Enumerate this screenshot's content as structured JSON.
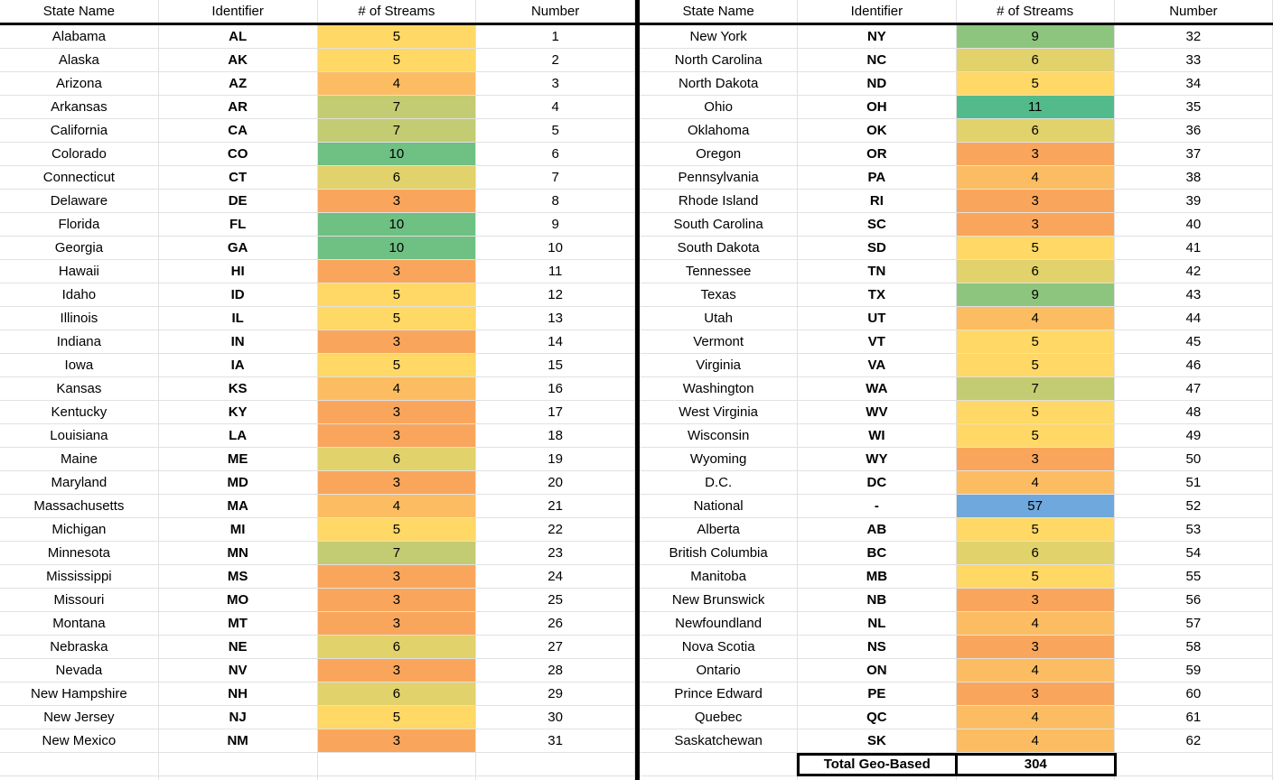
{
  "grid": {
    "headers": [
      "State Name",
      "Identifier",
      "# of Streams",
      "Number"
    ],
    "gridline_color": "#e1e1e1",
    "separator_color": "#000000",
    "header_underline_color": "#000000",
    "total_border_color": "#000000",
    "value_colors": {
      "3": "#f9a65c",
      "4": "#fcbd62",
      "5": "#ffd866",
      "6": "#e1d26c",
      "7": "#c3cc72",
      "9": "#8ec57e",
      "10": "#6ec083",
      "11": "#53bb8b",
      "57": "#6fa8dc"
    },
    "left_table": {
      "filler_rows": 2,
      "rows": [
        {
          "state": "Alabama",
          "abbr": "AL",
          "streams": "5",
          "number": "1"
        },
        {
          "state": "Alaska",
          "abbr": "AK",
          "streams": "5",
          "number": "2"
        },
        {
          "state": "Arizona",
          "abbr": "AZ",
          "streams": "4",
          "number": "3"
        },
        {
          "state": "Arkansas",
          "abbr": "AR",
          "streams": "7",
          "number": "4"
        },
        {
          "state": "California",
          "abbr": "CA",
          "streams": "7",
          "number": "5"
        },
        {
          "state": "Colorado",
          "abbr": "CO",
          "streams": "10",
          "number": "6"
        },
        {
          "state": "Connecticut",
          "abbr": "CT",
          "streams": "6",
          "number": "7"
        },
        {
          "state": "Delaware",
          "abbr": "DE",
          "streams": "3",
          "number": "8"
        },
        {
          "state": "Florida",
          "abbr": "FL",
          "streams": "10",
          "number": "9"
        },
        {
          "state": "Georgia",
          "abbr": "GA",
          "streams": "10",
          "number": "10"
        },
        {
          "state": "Hawaii",
          "abbr": "HI",
          "streams": "3",
          "number": "11"
        },
        {
          "state": "Idaho",
          "abbr": "ID",
          "streams": "5",
          "number": "12"
        },
        {
          "state": "Illinois",
          "abbr": "IL",
          "streams": "5",
          "number": "13"
        },
        {
          "state": "Indiana",
          "abbr": "IN",
          "streams": "3",
          "number": "14"
        },
        {
          "state": "Iowa",
          "abbr": "IA",
          "streams": "5",
          "number": "15"
        },
        {
          "state": "Kansas",
          "abbr": "KS",
          "streams": "4",
          "number": "16"
        },
        {
          "state": "Kentucky",
          "abbr": "KY",
          "streams": "3",
          "number": "17"
        },
        {
          "state": "Louisiana",
          "abbr": "LA",
          "streams": "3",
          "number": "18"
        },
        {
          "state": "Maine",
          "abbr": "ME",
          "streams": "6",
          "number": "19"
        },
        {
          "state": "Maryland",
          "abbr": "MD",
          "streams": "3",
          "number": "20"
        },
        {
          "state": "Massachusetts",
          "abbr": "MA",
          "streams": "4",
          "number": "21"
        },
        {
          "state": "Michigan",
          "abbr": "MI",
          "streams": "5",
          "number": "22"
        },
        {
          "state": "Minnesota",
          "abbr": "MN",
          "streams": "7",
          "number": "23"
        },
        {
          "state": "Mississippi",
          "abbr": "MS",
          "streams": "3",
          "number": "24"
        },
        {
          "state": "Missouri",
          "abbr": "MO",
          "streams": "3",
          "number": "25"
        },
        {
          "state": "Montana",
          "abbr": "MT",
          "streams": "3",
          "number": "26"
        },
        {
          "state": "Nebraska",
          "abbr": "NE",
          "streams": "6",
          "number": "27"
        },
        {
          "state": "Nevada",
          "abbr": "NV",
          "streams": "3",
          "number": "28"
        },
        {
          "state": "New Hampshire",
          "abbr": "NH",
          "streams": "6",
          "number": "29"
        },
        {
          "state": "New Jersey",
          "abbr": "NJ",
          "streams": "5",
          "number": "30"
        },
        {
          "state": "New Mexico",
          "abbr": "NM",
          "streams": "3",
          "number": "31"
        }
      ]
    },
    "right_table": {
      "filler_rows": 1,
      "rows": [
        {
          "state": "New York",
          "abbr": "NY",
          "streams": "9",
          "number": "32"
        },
        {
          "state": "North Carolina",
          "abbr": "NC",
          "streams": "6",
          "number": "33"
        },
        {
          "state": "North Dakota",
          "abbr": "ND",
          "streams": "5",
          "number": "34"
        },
        {
          "state": "Ohio",
          "abbr": "OH",
          "streams": "11",
          "number": "35"
        },
        {
          "state": "Oklahoma",
          "abbr": "OK",
          "streams": "6",
          "number": "36"
        },
        {
          "state": "Oregon",
          "abbr": "OR",
          "streams": "3",
          "number": "37"
        },
        {
          "state": "Pennsylvania",
          "abbr": "PA",
          "streams": "4",
          "number": "38"
        },
        {
          "state": "Rhode Island",
          "abbr": "RI",
          "streams": "3",
          "number": "39"
        },
        {
          "state": "South Carolina",
          "abbr": "SC",
          "streams": "3",
          "number": "40"
        },
        {
          "state": "South Dakota",
          "abbr": "SD",
          "streams": "5",
          "number": "41"
        },
        {
          "state": "Tennessee",
          "abbr": "TN",
          "streams": "6",
          "number": "42"
        },
        {
          "state": "Texas",
          "abbr": "TX",
          "streams": "9",
          "number": "43"
        },
        {
          "state": "Utah",
          "abbr": "UT",
          "streams": "4",
          "number": "44"
        },
        {
          "state": "Vermont",
          "abbr": "VT",
          "streams": "5",
          "number": "45"
        },
        {
          "state": "Virginia",
          "abbr": "VA",
          "streams": "5",
          "number": "46"
        },
        {
          "state": "Washington",
          "abbr": "WA",
          "streams": "7",
          "number": "47"
        },
        {
          "state": "West Virginia",
          "abbr": "WV",
          "streams": "5",
          "number": "48"
        },
        {
          "state": "Wisconsin",
          "abbr": "WI",
          "streams": "5",
          "number": "49"
        },
        {
          "state": "Wyoming",
          "abbr": "WY",
          "streams": "3",
          "number": "50"
        },
        {
          "state": "D.C.",
          "abbr": "DC",
          "streams": "4",
          "number": "51"
        },
        {
          "state": "National",
          "abbr": "-",
          "streams": "57",
          "number": "52"
        },
        {
          "state": "Alberta",
          "abbr": "AB",
          "streams": "5",
          "number": "53"
        },
        {
          "state": "British Columbia",
          "abbr": "BC",
          "streams": "6",
          "number": "54"
        },
        {
          "state": "Manitoba",
          "abbr": "MB",
          "streams": "5",
          "number": "55"
        },
        {
          "state": "New Brunswick",
          "abbr": "NB",
          "streams": "3",
          "number": "56"
        },
        {
          "state": "Newfoundland",
          "abbr": "NL",
          "streams": "4",
          "number": "57"
        },
        {
          "state": "Nova Scotia",
          "abbr": "NS",
          "streams": "3",
          "number": "58"
        },
        {
          "state": "Ontario",
          "abbr": "ON",
          "streams": "4",
          "number": "59"
        },
        {
          "state": "Prince Edward",
          "abbr": "PE",
          "streams": "3",
          "number": "60"
        },
        {
          "state": "Quebec",
          "abbr": "QC",
          "streams": "4",
          "number": "61"
        },
        {
          "state": "Saskatchewan",
          "abbr": "SK",
          "streams": "4",
          "number": "62"
        }
      ],
      "total": {
        "label": "Total Geo-Based",
        "value": "304"
      }
    }
  }
}
